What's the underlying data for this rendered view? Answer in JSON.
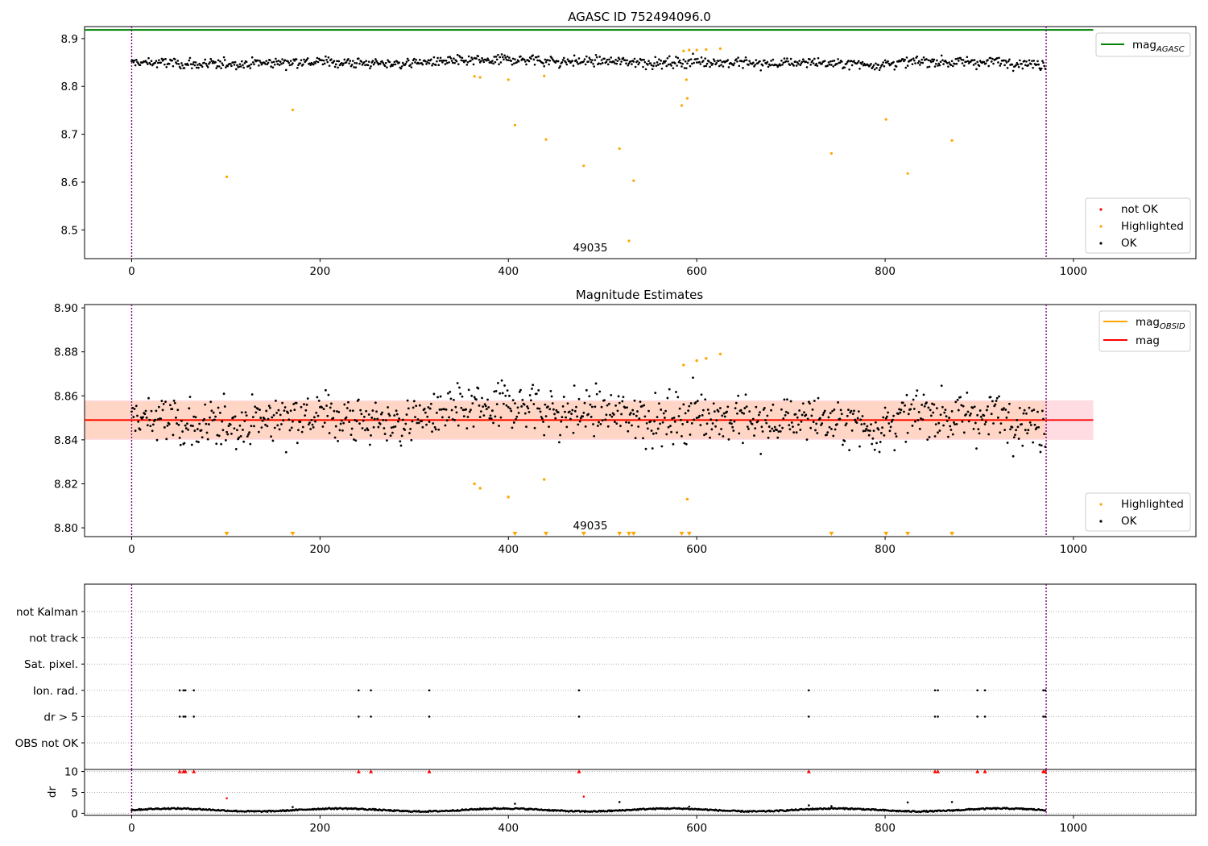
{
  "colors": {
    "ok": "#000000",
    "highlighted": "#ffa500",
    "not_ok": "#ff0000",
    "mag_agasc": "#008000",
    "mag": "#ff0000",
    "mag_obsid": "#ffa500",
    "band_outer": "#ffc0cb",
    "band_inner": "#ffd5bf",
    "obsid_marker": "#800080",
    "grid": "#b0b0b0"
  },
  "chart_data": [
    {
      "type": "scatter",
      "title": "AGASC ID 752494096.0",
      "xlabel": "",
      "ylabel": "",
      "xlim": [
        -50,
        1130
      ],
      "ylim": [
        8.44,
        8.925
      ],
      "xticks": [
        "0",
        "200",
        "400",
        "600",
        "800",
        "1000"
      ],
      "yticks": [
        "8.5",
        "8.6",
        "8.7",
        "8.8",
        "8.9"
      ],
      "annotation": "49035",
      "mag_agasc": 8.918,
      "obsid_bounds": [
        0,
        971
      ],
      "legend_top": {
        "position": "upper right",
        "entries": [
          {
            "label": "mag",
            "sub": "AGASC",
            "kind": "line",
            "color": "#008000"
          }
        ]
      },
      "legend_bottom": {
        "position": "lower right",
        "entries": [
          {
            "label": "not OK",
            "color": "#ff0000"
          },
          {
            "label": "Highlighted",
            "color": "#ffa500"
          },
          {
            "label": "OK",
            "color": "#000000"
          }
        ]
      },
      "ok_series": {
        "n": 971,
        "x_end": 970,
        "mean": 8.849
      },
      "highlighted": {
        "x": [
          101,
          171,
          364,
          370,
          400,
          407,
          438,
          440,
          480,
          518,
          528,
          533,
          584,
          586,
          589,
          590,
          592,
          600,
          610,
          625,
          743,
          801,
          824,
          871
        ],
        "y": [
          8.611,
          8.751,
          8.821,
          8.819,
          8.814,
          8.719,
          8.822,
          8.689,
          8.634,
          8.67,
          8.477,
          8.603,
          8.76,
          8.874,
          8.814,
          8.775,
          8.876,
          8.876,
          8.877,
          8.879,
          8.66,
          8.731,
          8.618,
          8.687
        ]
      }
    },
    {
      "type": "scatter",
      "title": "Magnitude Estimates",
      "xlabel": "",
      "ylabel": "",
      "xlim": [
        -50,
        1130
      ],
      "ylim": [
        8.796,
        8.9015
      ],
      "xticks": [
        "0",
        "200",
        "400",
        "600",
        "800",
        "1000"
      ],
      "yticks": [
        "8.80",
        "8.82",
        "8.84",
        "8.86",
        "8.88",
        "8.90"
      ],
      "annotation": "49035",
      "mag": 8.849,
      "mag_obsid": 8.849,
      "band_outer": [
        8.84,
        8.858
      ],
      "band_inner": [
        8.8405,
        8.8575
      ],
      "band_x": [
        -50,
        1021
      ],
      "obsid_bounds": [
        0,
        971
      ],
      "legend_top": {
        "position": "upper right",
        "entries": [
          {
            "label": "mag",
            "sub": "OBSID",
            "kind": "line",
            "color": "#ffa500"
          },
          {
            "label": "mag",
            "sub": "",
            "kind": "line",
            "color": "#ff0000"
          }
        ]
      },
      "legend_bottom": {
        "position": "lower right",
        "entries": [
          {
            "label": "Highlighted",
            "color": "#ffa500"
          },
          {
            "label": "OK",
            "color": "#000000"
          }
        ]
      },
      "ok_series": {
        "n": 971,
        "x_end": 970,
        "mean": 8.849
      },
      "highlighted": {
        "x": [
          364,
          370,
          400,
          438,
          586,
          590,
          600,
          610,
          625
        ],
        "y": [
          8.82,
          8.818,
          8.814,
          8.822,
          8.874,
          8.813,
          8.876,
          8.877,
          8.879
        ]
      },
      "below_range_x": [
        101,
        171,
        407,
        440,
        480,
        518,
        528,
        533,
        584,
        592,
        743,
        801,
        824,
        871
      ]
    },
    {
      "type": "scatter",
      "title": "",
      "xlabel": "",
      "ylabel": "",
      "xlim": [
        -50,
        1130
      ],
      "categories": [
        "not Kalman",
        "not track",
        "Sat. pixel.",
        "Ion. rad.",
        "dr > 5",
        "OBS not OK"
      ],
      "flagged_x": [
        51,
        55,
        57,
        66,
        241,
        254,
        316,
        475,
        719,
        853,
        856,
        898,
        906,
        968,
        970
      ],
      "flag_rows": [
        "Ion. rad.",
        "dr > 5"
      ],
      "obsid_bounds": [
        0,
        971
      ]
    },
    {
      "type": "scatter",
      "title": "",
      "xlabel": "",
      "ylabel": "dr",
      "xlim": [
        -50,
        1130
      ],
      "ylim": [
        -0.5,
        10.5
      ],
      "xticks": [
        "0",
        "200",
        "400",
        "600",
        "800",
        "1000"
      ],
      "yticks": [
        "0",
        "5",
        "10"
      ],
      "ok_series": {
        "n": 971,
        "x_end": 970,
        "mean": 0.7
      },
      "outliers": {
        "x": [
          171,
          407,
          518,
          592,
          719,
          743,
          824,
          871
        ],
        "y": [
          1.5,
          2.3,
          2.7,
          1.6,
          1.9,
          1.7,
          2.6,
          2.7
        ]
      },
      "red_points": {
        "x": [
          101,
          480
        ],
        "y": [
          3.6,
          4.0
        ]
      },
      "clipped_x": [
        51,
        55,
        57,
        66,
        241,
        254,
        316,
        475,
        719,
        853,
        856,
        898,
        906,
        968,
        970
      ],
      "clip_value": 10,
      "obsid_bounds": [
        0,
        971
      ]
    }
  ]
}
